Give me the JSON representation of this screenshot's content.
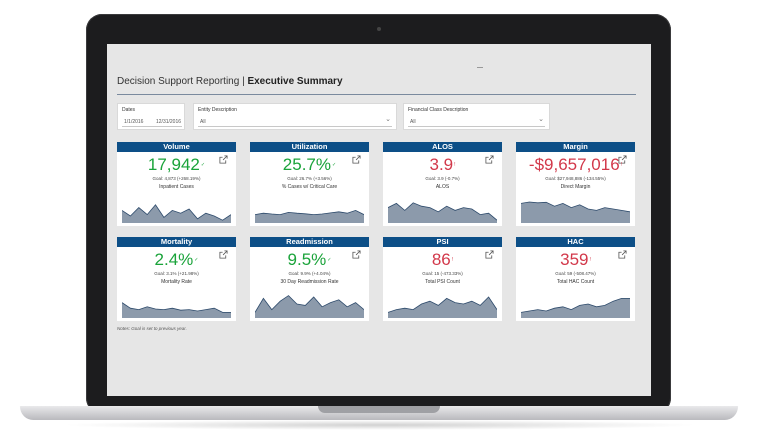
{
  "dashboard": {
    "title_prefix": "Decision Support Reporting | ",
    "title_bold": "Executive Summary",
    "notes": "Notes: Goal is set to previous year."
  },
  "filters": {
    "dates": {
      "label": "Dates",
      "start": "1/1/2016",
      "end": "12/31/2016"
    },
    "entity": {
      "label": "Entity Description",
      "value": "All"
    },
    "financial_class": {
      "label": "Financial Class Description",
      "value": "All"
    }
  },
  "colors": {
    "header": "#0d4f87",
    "good": "#1aa33a",
    "bad": "#d2384a",
    "spark_fill": "#8c9aab",
    "spark_line": "#2d4a6b"
  },
  "cards": [
    {
      "title": "Volume",
      "value": "17,942",
      "status": "good",
      "mark": "✓",
      "goal": "Goal: 4,873 (+268.19%)",
      "subtitle": "Inpatient Cases",
      "spark": [
        0.45,
        0.25,
        0.55,
        0.3,
        0.65,
        0.2,
        0.45,
        0.35,
        0.5,
        0.15,
        0.35,
        0.25,
        0.1,
        0.3
      ]
    },
    {
      "title": "Utilization",
      "value": "25.7%",
      "status": "good",
      "mark": "✓",
      "goal": "Goal: 26.7% (+3.56%)",
      "subtitle": "% Cases w/ Critical Care",
      "spark": [
        0.3,
        0.35,
        0.32,
        0.3,
        0.38,
        0.35,
        0.33,
        0.3,
        0.32,
        0.36,
        0.4,
        0.35,
        0.45,
        0.3
      ]
    },
    {
      "title": "ALOS",
      "value": "3.9",
      "status": "bad",
      "mark": "!",
      "goal": "Goal: 3.9 (-0.7%)",
      "subtitle": "ALOS",
      "spark": [
        0.55,
        0.7,
        0.45,
        0.72,
        0.6,
        0.55,
        0.4,
        0.6,
        0.45,
        0.55,
        0.5,
        0.3,
        0.35,
        0.1
      ]
    },
    {
      "title": "Margin",
      "value": "-$9,657,016",
      "status": "bad",
      "mark": "!",
      "goal": "Goal: $27,948,886 (-134.55%)",
      "subtitle": "Direct Margin",
      "spark": [
        0.7,
        0.75,
        0.72,
        0.74,
        0.6,
        0.7,
        0.55,
        0.65,
        0.5,
        0.45,
        0.55,
        0.5,
        0.45,
        0.4
      ]
    },
    {
      "title": "Mortality",
      "value": "2.4%",
      "status": "good",
      "mark": "✓",
      "goal": "Goal: 3.1% (+21.98%)",
      "subtitle": "Mortality Rate",
      "spark": [
        0.55,
        0.35,
        0.3,
        0.4,
        0.32,
        0.3,
        0.35,
        0.28,
        0.3,
        0.25,
        0.3,
        0.35,
        0.2,
        0.2
      ]
    },
    {
      "title": "Readmission",
      "value": "9.5%",
      "status": "good",
      "mark": "✓",
      "goal": "Goal: 9.9% (+4.04%)",
      "subtitle": "30 Day Readmission Rate",
      "spark": [
        0.2,
        0.7,
        0.3,
        0.6,
        0.8,
        0.5,
        0.45,
        0.75,
        0.4,
        0.55,
        0.65,
        0.4,
        0.55,
        0.3
      ]
    },
    {
      "title": "PSI",
      "value": "86",
      "status": "bad",
      "mark": "!",
      "goal": "Goal: 15 (-473.33%)",
      "subtitle": "Total PSI Count",
      "spark": [
        0.2,
        0.3,
        0.35,
        0.3,
        0.5,
        0.6,
        0.45,
        0.7,
        0.55,
        0.5,
        0.6,
        0.45,
        0.75,
        0.3
      ]
    },
    {
      "title": "HAC",
      "value": "359",
      "status": "bad",
      "mark": "!",
      "goal": "Goal: 59 (-508.47%)",
      "subtitle": "Total HAC Count",
      "spark": [
        0.2,
        0.25,
        0.3,
        0.25,
        0.35,
        0.4,
        0.3,
        0.45,
        0.5,
        0.4,
        0.45,
        0.6,
        0.7,
        0.7
      ]
    }
  ]
}
